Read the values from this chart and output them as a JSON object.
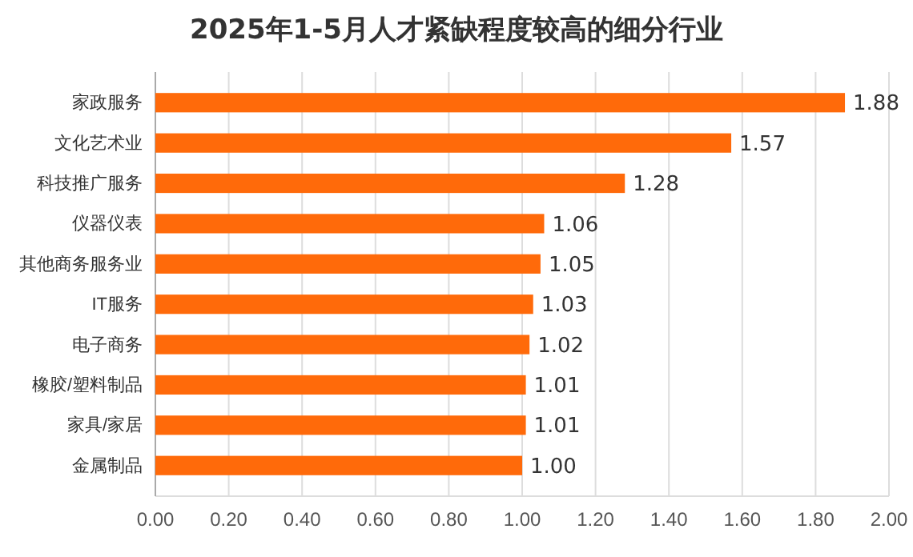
{
  "chart_data": {
    "type": "bar",
    "orientation": "horizontal",
    "title": "2025年1-5月人才紧缺程度较高的细分行业",
    "categories": [
      "家政服务",
      "文化艺术业",
      "科技推广服务",
      "仪器仪表",
      "其他商务服务业",
      "IT服务",
      "电子商务",
      "橡胶/塑料制品",
      "家具/家居",
      "金属制品"
    ],
    "values": [
      1.88,
      1.57,
      1.28,
      1.06,
      1.05,
      1.03,
      1.02,
      1.01,
      1.01,
      1.0
    ],
    "value_labels": [
      "1.88",
      "1.57",
      "1.28",
      "1.06",
      "1.05",
      "1.03",
      "1.02",
      "1.01",
      "1.01",
      "1.00"
    ],
    "color": "#ff6a0a",
    "xlim": [
      0,
      2
    ],
    "xticks": [
      {
        "value": 0,
        "label": "0.00"
      },
      {
        "value": 0.2,
        "label": "0.20"
      },
      {
        "value": 0.4,
        "label": "0.40"
      },
      {
        "value": 0.6,
        "label": "0.60"
      },
      {
        "value": 0.8,
        "label": "0.80"
      },
      {
        "value": 1,
        "label": "1.00"
      },
      {
        "value": 1.2,
        "label": "1.20"
      },
      {
        "value": 1.4,
        "label": "1.40"
      },
      {
        "value": 1.6,
        "label": "1.60"
      },
      {
        "value": 1.8,
        "label": "1.80"
      },
      {
        "value": 2,
        "label": "2.00"
      }
    ],
    "grid": "x"
  }
}
